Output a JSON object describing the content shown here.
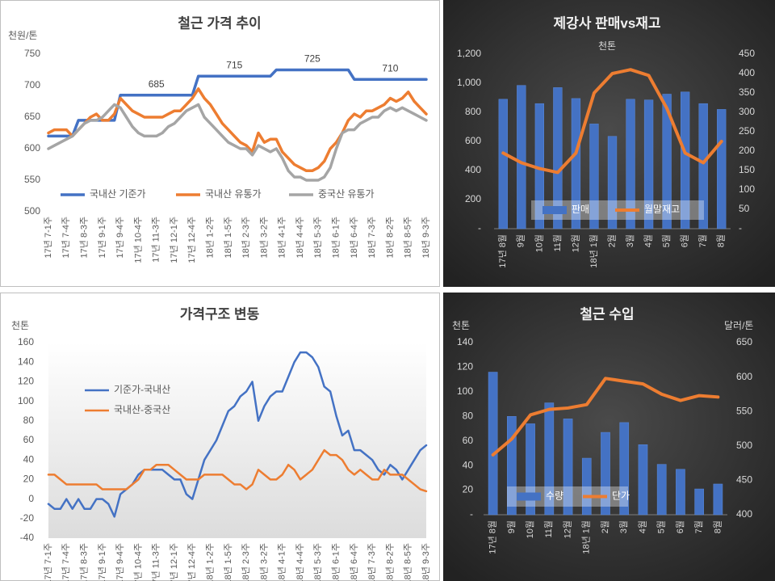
{
  "chart_data": [
    {
      "type": "line",
      "title": "철근 가격 추이",
      "y_label": "천원/톤",
      "categories": [
        "17년 7-1주",
        null,
        null,
        "17년 7-4주",
        null,
        null,
        "17년 8-3주",
        null,
        null,
        "17년 9-1주",
        null,
        null,
        "17년 9-4주",
        null,
        null,
        "17년 10-4주",
        null,
        null,
        "17년 11-3주",
        null,
        null,
        "17년 12-1주",
        null,
        null,
        "17년 12-4주",
        null,
        null,
        "18년 1-2주",
        null,
        null,
        "18년 1-5주",
        null,
        null,
        "18년 2-3주",
        null,
        null,
        "18년 3-2주",
        null,
        null,
        "18년 4-1주",
        null,
        null,
        "18년 4-4주",
        null,
        null,
        "18년 5-3주",
        null,
        null,
        "18년 6-1주",
        null,
        null,
        "18년 6-4주",
        null,
        null,
        "18년 7-3주",
        null,
        null,
        "18년 8-2주",
        null,
        null,
        "18년 8-5주",
        null,
        null,
        "18년 9-3주"
      ],
      "series": [
        {
          "name": "국내산 기준가",
          "color": "#4472c4",
          "values": [
            620,
            620,
            620,
            620,
            620,
            645,
            645,
            645,
            645,
            645,
            645,
            645,
            685,
            685,
            685,
            685,
            685,
            685,
            685,
            685,
            685,
            685,
            685,
            685,
            685,
            715,
            715,
            715,
            715,
            715,
            715,
            715,
            715,
            715,
            715,
            715,
            715,
            715,
            725,
            725,
            725,
            725,
            725,
            725,
            725,
            725,
            725,
            725,
            725,
            725,
            725,
            710,
            710,
            710,
            710,
            710,
            710,
            710,
            710,
            710,
            710,
            710,
            710,
            710
          ]
        },
        {
          "name": "국내산 유통가",
          "color": "#ed7d31",
          "values": [
            625,
            630,
            630,
            630,
            620,
            630,
            640,
            650,
            655,
            645,
            645,
            655,
            680,
            670,
            660,
            655,
            650,
            650,
            650,
            650,
            655,
            660,
            660,
            670,
            680,
            695,
            680,
            670,
            655,
            640,
            630,
            620,
            610,
            605,
            595,
            625,
            610,
            615,
            615,
            595,
            585,
            575,
            570,
            565,
            565,
            570,
            580,
            600,
            610,
            625,
            645,
            655,
            650,
            660,
            660,
            665,
            670,
            680,
            675,
            680,
            690,
            675,
            665,
            655
          ]
        },
        {
          "name": "중국산 유통가",
          "color": "#a5a5a5",
          "values": [
            600,
            605,
            610,
            615,
            620,
            630,
            640,
            645,
            645,
            650,
            660,
            670,
            665,
            650,
            635,
            625,
            620,
            620,
            620,
            625,
            635,
            640,
            650,
            660,
            665,
            670,
            650,
            640,
            630,
            620,
            610,
            605,
            600,
            600,
            590,
            605,
            600,
            595,
            600,
            585,
            565,
            555,
            555,
            550,
            550,
            550,
            555,
            570,
            600,
            625,
            630,
            630,
            640,
            645,
            650,
            650,
            660,
            665,
            660,
            665,
            660,
            655,
            650,
            645
          ]
        }
      ],
      "annotations": [
        "685",
        "715",
        "725",
        "710"
      ],
      "ylim": [
        500,
        750
      ],
      "yticks": [
        500,
        550,
        600,
        650,
        700,
        750
      ],
      "grid": false,
      "legend": "bottom"
    },
    {
      "type": "line",
      "title": "가격구조 변동",
      "y_label": "천톤",
      "categories": [
        "17년 7-1주",
        null,
        null,
        "17년 7-4주",
        null,
        null,
        "17년 8-3주",
        null,
        null,
        "17년 9-1주",
        null,
        null,
        "17년 9-4주",
        null,
        null,
        "17년 10-4주",
        null,
        null,
        "17년 11-3주",
        null,
        null,
        "17년 12-1주",
        null,
        null,
        "17년 12-4주",
        null,
        null,
        "18년 1-2주",
        null,
        null,
        "18년 1-5주",
        null,
        null,
        "18년 2-3주",
        null,
        null,
        "18년 3-2주",
        null,
        null,
        "18년 4-1주",
        null,
        null,
        "18년 4-4주",
        null,
        null,
        "18년 5-3주",
        null,
        null,
        "18년 6-1주",
        null,
        null,
        "18년 6-4주",
        null,
        null,
        "18년 7-3주",
        null,
        null,
        "18년 8-2주",
        null,
        null,
        "18년 8-5주",
        null,
        null,
        "18년 9-3주"
      ],
      "series": [
        {
          "name": "기준가-국내산",
          "color": "#4472c4",
          "values": [
            -5,
            -10,
            -10,
            0,
            -10,
            0,
            -10,
            -10,
            0,
            0,
            -5,
            -18,
            5,
            10,
            15,
            25,
            30,
            30,
            30,
            30,
            25,
            20,
            20,
            5,
            0,
            20,
            40,
            50,
            60,
            75,
            90,
            95,
            105,
            110,
            120,
            80,
            95,
            105,
            110,
            110,
            125,
            140,
            150,
            150,
            145,
            135,
            115,
            110,
            85,
            65,
            70,
            50,
            50,
            45,
            40,
            30,
            25,
            35,
            30,
            20,
            30,
            40,
            50,
            55
          ]
        },
        {
          "name": "국내산-중국산",
          "color": "#ed7d31",
          "values": [
            25,
            25,
            20,
            15,
            15,
            15,
            15,
            15,
            15,
            10,
            10,
            10,
            10,
            10,
            15,
            20,
            30,
            30,
            35,
            35,
            35,
            30,
            25,
            20,
            20,
            20,
            25,
            25,
            25,
            25,
            20,
            15,
            15,
            10,
            15,
            30,
            25,
            20,
            20,
            25,
            35,
            30,
            20,
            25,
            30,
            40,
            50,
            45,
            45,
            40,
            30,
            25,
            30,
            25,
            20,
            20,
            30,
            25,
            25,
            25,
            20,
            15,
            10,
            8
          ]
        }
      ],
      "ylim": [
        -40,
        160
      ],
      "yticks": [
        -40,
        -20,
        0,
        20,
        40,
        60,
        80,
        100,
        120,
        140,
        160
      ],
      "grid": false,
      "legend": "upper left"
    },
    {
      "type": "combo",
      "title": "제강사 판매vs재고",
      "subtitle": "천톤",
      "categories": [
        "17년 8월",
        "9월",
        "10월",
        "11월",
        "12월",
        "18년 1월",
        "2월",
        "3월",
        "4월",
        "5월",
        "6월",
        "7월",
        "8월"
      ],
      "series": [
        {
          "name": "판매",
          "color": "#4472c4",
          "type": "bar",
          "values": [
            890,
            985,
            860,
            970,
            895,
            720,
            635,
            890,
            885,
            925,
            940,
            860,
            820
          ]
        },
        {
          "name": "월말재고",
          "color": "#ed7d31",
          "type": "line",
          "axis": "y2",
          "values": [
            195,
            170,
            155,
            145,
            195,
            350,
            400,
            410,
            395,
            310,
            195,
            170,
            225
          ]
        }
      ],
      "ylim": [
        0,
        1200
      ],
      "yticks": [
        {
          "value": 0,
          "label": "-"
        },
        200,
        400,
        600,
        800,
        {
          "value": 1000,
          "label": "1,000"
        },
        {
          "value": 1200,
          "label": "1,200"
        }
      ],
      "y2lim": [
        0,
        450
      ],
      "y2ticks": [
        {
          "value": 0,
          "label": "-"
        },
        50,
        100,
        150,
        200,
        250,
        300,
        350,
        400,
        450
      ],
      "grid": false,
      "legend": "bottom"
    },
    {
      "type": "combo",
      "title": "철근 수입",
      "y_label": "천톤",
      "y2_label": "달러/톤",
      "categories": [
        "17년 8월",
        "9월",
        "10월",
        "11월",
        "12월",
        "18년 1월",
        "2월",
        "3월",
        "4월",
        "5월",
        "6월",
        "7월",
        "8월"
      ],
      "series": [
        {
          "name": "수량",
          "color": "#4472c4",
          "type": "bar",
          "values": [
            116,
            80,
            74,
            91,
            78,
            46,
            67,
            75,
            57,
            41,
            37,
            21,
            25
          ]
        },
        {
          "name": "단가",
          "color": "#ed7d31",
          "type": "line",
          "axis": "y2",
          "values": [
            487,
            510,
            545,
            553,
            555,
            560,
            598,
            594,
            590,
            575,
            566,
            573,
            571
          ]
        }
      ],
      "ylim": [
        0,
        140
      ],
      "yticks": [
        {
          "value": 0,
          "label": "-"
        },
        20,
        40,
        60,
        80,
        100,
        120,
        140
      ],
      "y2lim": [
        400,
        650
      ],
      "y2ticks": [
        400,
        450,
        500,
        550,
        600,
        650
      ],
      "grid": false,
      "legend": "bottom left"
    }
  ]
}
